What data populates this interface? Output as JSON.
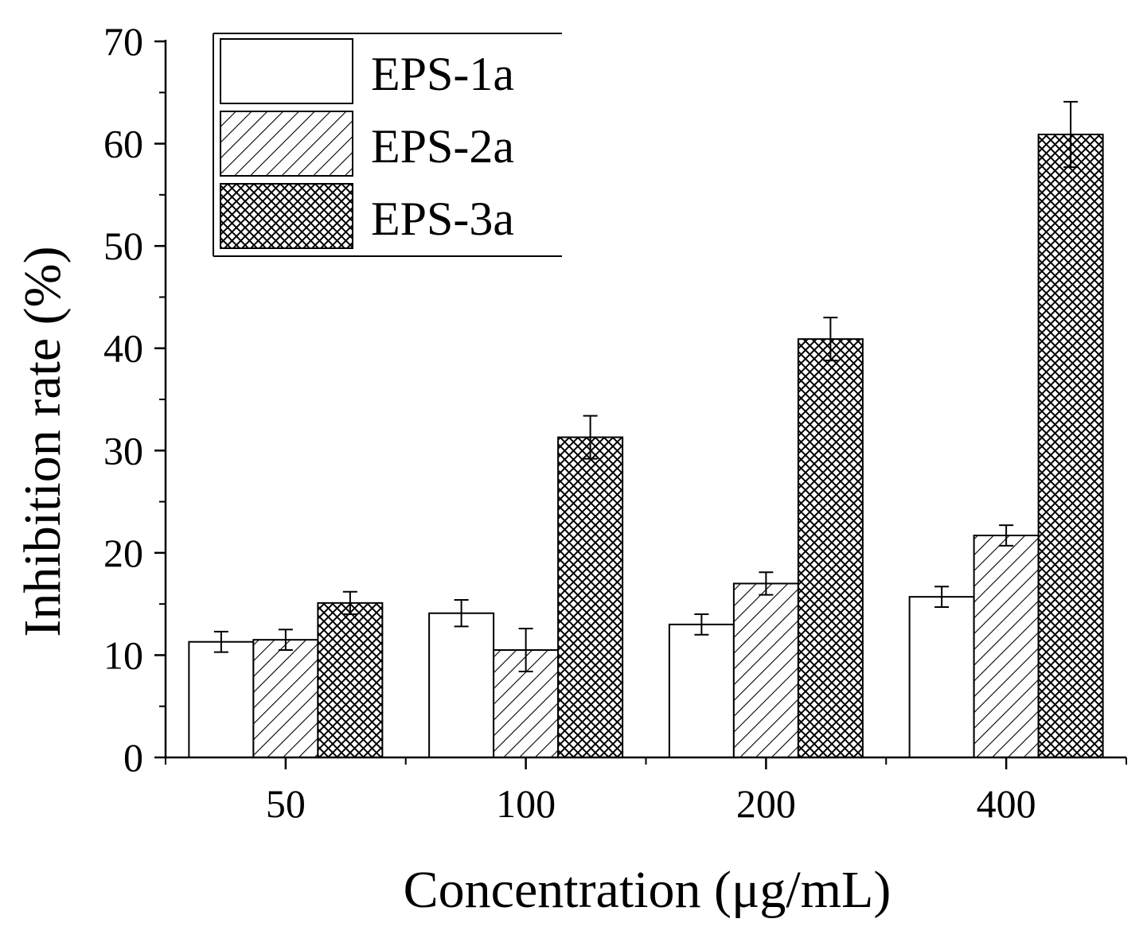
{
  "chart_data": {
    "type": "bar",
    "categories": [
      "50",
      "100",
      "200",
      "400"
    ],
    "series": [
      {
        "name": "EPS-1a",
        "pattern": "none",
        "values": [
          11.3,
          14.1,
          13.0,
          15.7
        ],
        "errors": [
          1.0,
          1.3,
          1.0,
          1.0
        ]
      },
      {
        "name": "EPS-2a",
        "pattern": "diagonal",
        "values": [
          11.5,
          10.5,
          17.0,
          21.7
        ],
        "errors": [
          1.0,
          2.1,
          1.1,
          1.0
        ]
      },
      {
        "name": "EPS-3a",
        "pattern": "crosshatch",
        "values": [
          15.1,
          31.3,
          40.9,
          60.9
        ],
        "errors": [
          1.1,
          2.1,
          2.1,
          3.2
        ]
      }
    ],
    "xlabel": "Concentration (μg/mL)",
    "ylabel": "Inhibition rate (%)",
    "ylim": [
      0,
      70
    ],
    "yticks": [
      0,
      10,
      20,
      30,
      40,
      50,
      60,
      70
    ],
    "legend_position": "top-left",
    "grid": false
  }
}
